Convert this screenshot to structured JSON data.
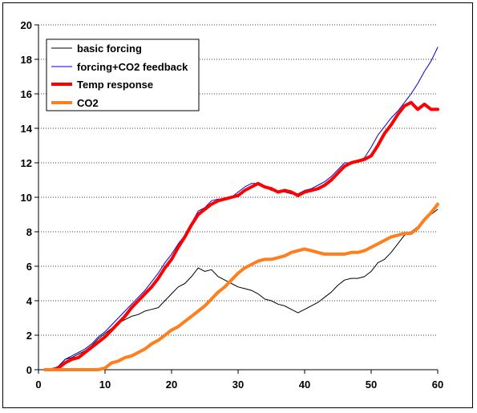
{
  "chart_data": {
    "type": "line",
    "title": "",
    "xlabel": "",
    "ylabel": "",
    "xlim": [
      0,
      60
    ],
    "ylim": [
      0,
      20
    ],
    "x_ticks": [
      0,
      10,
      20,
      30,
      40,
      50,
      60
    ],
    "y_ticks": [
      0,
      2,
      4,
      6,
      8,
      10,
      12,
      14,
      16,
      18,
      20
    ],
    "grid": "horizontal dotted",
    "legend_position": "top-left",
    "series": [
      {
        "name": "basic forcing",
        "color": "#000000",
        "width": "thin",
        "points": [
          [
            1,
            0
          ],
          [
            2,
            0
          ],
          [
            3,
            0.2
          ],
          [
            4,
            0.6
          ],
          [
            5,
            0.7
          ],
          [
            6,
            0.9
          ],
          [
            7,
            1.1
          ],
          [
            8,
            1.4
          ],
          [
            9,
            1.8
          ],
          [
            10,
            2.1
          ],
          [
            11,
            2.4
          ],
          [
            12,
            2.7
          ],
          [
            13,
            2.9
          ],
          [
            14,
            3.1
          ],
          [
            15,
            3.2
          ],
          [
            16,
            3.4
          ],
          [
            17,
            3.5
          ],
          [
            18,
            3.6
          ],
          [
            19,
            4.0
          ],
          [
            20,
            4.4
          ],
          [
            21,
            4.8
          ],
          [
            22,
            5.0
          ],
          [
            23,
            5.4
          ],
          [
            24,
            5.9
          ],
          [
            25,
            5.7
          ],
          [
            26,
            5.8
          ],
          [
            27,
            5.4
          ],
          [
            28,
            5.2
          ],
          [
            29,
            5.0
          ],
          [
            30,
            4.8
          ],
          [
            31,
            4.7
          ],
          [
            32,
            4.6
          ],
          [
            33,
            4.4
          ],
          [
            34,
            4.1
          ],
          [
            35,
            4.0
          ],
          [
            36,
            3.8
          ],
          [
            37,
            3.7
          ],
          [
            38,
            3.5
          ],
          [
            39,
            3.3
          ],
          [
            40,
            3.5
          ],
          [
            41,
            3.7
          ],
          [
            42,
            3.9
          ],
          [
            43,
            4.2
          ],
          [
            44,
            4.5
          ],
          [
            45,
            4.9
          ],
          [
            46,
            5.2
          ],
          [
            47,
            5.3
          ],
          [
            48,
            5.3
          ],
          [
            49,
            5.4
          ],
          [
            50,
            5.7
          ],
          [
            51,
            6.2
          ],
          [
            52,
            6.4
          ],
          [
            53,
            6.8
          ],
          [
            54,
            7.3
          ],
          [
            55,
            7.8
          ],
          [
            56,
            8.0
          ],
          [
            57,
            8.3
          ],
          [
            58,
            8.7
          ],
          [
            59,
            9.0
          ],
          [
            60,
            9.3
          ]
        ]
      },
      {
        "name": "forcing+CO2 feedback",
        "color": "#0000cc",
        "width": "thin",
        "points": [
          [
            1,
            0
          ],
          [
            2,
            0
          ],
          [
            3,
            0.2
          ],
          [
            4,
            0.6
          ],
          [
            5,
            0.8
          ],
          [
            6,
            1.0
          ],
          [
            7,
            1.2
          ],
          [
            8,
            1.5
          ],
          [
            9,
            1.9
          ],
          [
            10,
            2.2
          ],
          [
            11,
            2.6
          ],
          [
            12,
            3.0
          ],
          [
            13,
            3.4
          ],
          [
            14,
            3.8
          ],
          [
            15,
            4.2
          ],
          [
            16,
            4.6
          ],
          [
            17,
            5.1
          ],
          [
            18,
            5.6
          ],
          [
            19,
            6.2
          ],
          [
            20,
            6.7
          ],
          [
            21,
            7.3
          ],
          [
            22,
            7.8
          ],
          [
            23,
            8.5
          ],
          [
            24,
            9.2
          ],
          [
            25,
            9.4
          ],
          [
            26,
            9.8
          ],
          [
            27,
            9.9
          ],
          [
            28,
            9.9
          ],
          [
            29,
            10.0
          ],
          [
            30,
            10.3
          ],
          [
            31,
            10.6
          ],
          [
            32,
            10.8
          ],
          [
            33,
            10.8
          ],
          [
            34,
            10.6
          ],
          [
            35,
            10.4
          ],
          [
            36,
            10.3
          ],
          [
            37,
            10.3
          ],
          [
            38,
            10.2
          ],
          [
            39,
            10.2
          ],
          [
            40,
            10.4
          ],
          [
            41,
            10.5
          ],
          [
            42,
            10.7
          ],
          [
            43,
            10.9
          ],
          [
            44,
            11.2
          ],
          [
            45,
            11.6
          ],
          [
            46,
            12.0
          ],
          [
            47,
            12.0
          ],
          [
            48,
            12.1
          ],
          [
            49,
            12.3
          ],
          [
            50,
            12.9
          ],
          [
            51,
            13.6
          ],
          [
            52,
            14.1
          ],
          [
            53,
            14.6
          ],
          [
            54,
            15.0
          ],
          [
            55,
            15.5
          ],
          [
            56,
            16.0
          ],
          [
            57,
            16.6
          ],
          [
            58,
            17.3
          ],
          [
            59,
            17.9
          ],
          [
            60,
            18.7
          ]
        ]
      },
      {
        "name": "Temp response",
        "color": "#ff0000",
        "width": "thick",
        "points": [
          [
            1,
            0
          ],
          [
            2,
            0
          ],
          [
            3,
            0.1
          ],
          [
            4,
            0.4
          ],
          [
            5,
            0.6
          ],
          [
            6,
            0.7
          ],
          [
            7,
            1.0
          ],
          [
            8,
            1.3
          ],
          [
            9,
            1.6
          ],
          [
            10,
            1.9
          ],
          [
            11,
            2.3
          ],
          [
            12,
            2.7
          ],
          [
            13,
            3.1
          ],
          [
            14,
            3.6
          ],
          [
            15,
            4.0
          ],
          [
            16,
            4.4
          ],
          [
            17,
            4.8
          ],
          [
            18,
            5.3
          ],
          [
            19,
            5.9
          ],
          [
            20,
            6.4
          ],
          [
            21,
            7.1
          ],
          [
            22,
            7.7
          ],
          [
            23,
            8.4
          ],
          [
            24,
            9.0
          ],
          [
            25,
            9.3
          ],
          [
            26,
            9.6
          ],
          [
            27,
            9.8
          ],
          [
            28,
            9.9
          ],
          [
            29,
            10.0
          ],
          [
            30,
            10.1
          ],
          [
            31,
            10.4
          ],
          [
            32,
            10.6
          ],
          [
            33,
            10.8
          ],
          [
            34,
            10.6
          ],
          [
            35,
            10.5
          ],
          [
            36,
            10.3
          ],
          [
            37,
            10.4
          ],
          [
            38,
            10.3
          ],
          [
            39,
            10.1
          ],
          [
            40,
            10.3
          ],
          [
            41,
            10.4
          ],
          [
            42,
            10.5
          ],
          [
            43,
            10.7
          ],
          [
            44,
            11.0
          ],
          [
            45,
            11.4
          ],
          [
            46,
            11.8
          ],
          [
            47,
            12.0
          ],
          [
            48,
            12.1
          ],
          [
            49,
            12.2
          ],
          [
            50,
            12.4
          ],
          [
            51,
            13.0
          ],
          [
            52,
            13.7
          ],
          [
            53,
            14.2
          ],
          [
            54,
            14.8
          ],
          [
            55,
            15.3
          ],
          [
            56,
            15.5
          ],
          [
            57,
            15.1
          ],
          [
            58,
            15.4
          ],
          [
            59,
            15.1
          ],
          [
            60,
            15.1
          ]
        ]
      },
      {
        "name": "CO2",
        "color": "#ff7f1e",
        "width": "thick",
        "points": [
          [
            1,
            0
          ],
          [
            2,
            0
          ],
          [
            3,
            0
          ],
          [
            4,
            0
          ],
          [
            5,
            0
          ],
          [
            6,
            0
          ],
          [
            7,
            0
          ],
          [
            8,
            0
          ],
          [
            9,
            0
          ],
          [
            10,
            0.1
          ],
          [
            11,
            0.4
          ],
          [
            12,
            0.5
          ],
          [
            13,
            0.7
          ],
          [
            14,
            0.8
          ],
          [
            15,
            1.0
          ],
          [
            16,
            1.2
          ],
          [
            17,
            1.5
          ],
          [
            18,
            1.7
          ],
          [
            19,
            2.0
          ],
          [
            20,
            2.3
          ],
          [
            21,
            2.5
          ],
          [
            22,
            2.8
          ],
          [
            23,
            3.1
          ],
          [
            24,
            3.4
          ],
          [
            25,
            3.7
          ],
          [
            26,
            4.1
          ],
          [
            27,
            4.5
          ],
          [
            28,
            4.8
          ],
          [
            29,
            5.2
          ],
          [
            30,
            5.6
          ],
          [
            31,
            5.9
          ],
          [
            32,
            6.1
          ],
          [
            33,
            6.3
          ],
          [
            34,
            6.4
          ],
          [
            35,
            6.4
          ],
          [
            36,
            6.5
          ],
          [
            37,
            6.6
          ],
          [
            38,
            6.8
          ],
          [
            39,
            6.9
          ],
          [
            40,
            7.0
          ],
          [
            41,
            6.9
          ],
          [
            42,
            6.8
          ],
          [
            43,
            6.7
          ],
          [
            44,
            6.7
          ],
          [
            45,
            6.7
          ],
          [
            46,
            6.7
          ],
          [
            47,
            6.8
          ],
          [
            48,
            6.8
          ],
          [
            49,
            6.9
          ],
          [
            50,
            7.1
          ],
          [
            51,
            7.3
          ],
          [
            52,
            7.5
          ],
          [
            53,
            7.7
          ],
          [
            54,
            7.8
          ],
          [
            55,
            7.9
          ],
          [
            56,
            7.9
          ],
          [
            57,
            8.2
          ],
          [
            58,
            8.7
          ],
          [
            59,
            9.1
          ],
          [
            60,
            9.6
          ]
        ]
      }
    ]
  }
}
